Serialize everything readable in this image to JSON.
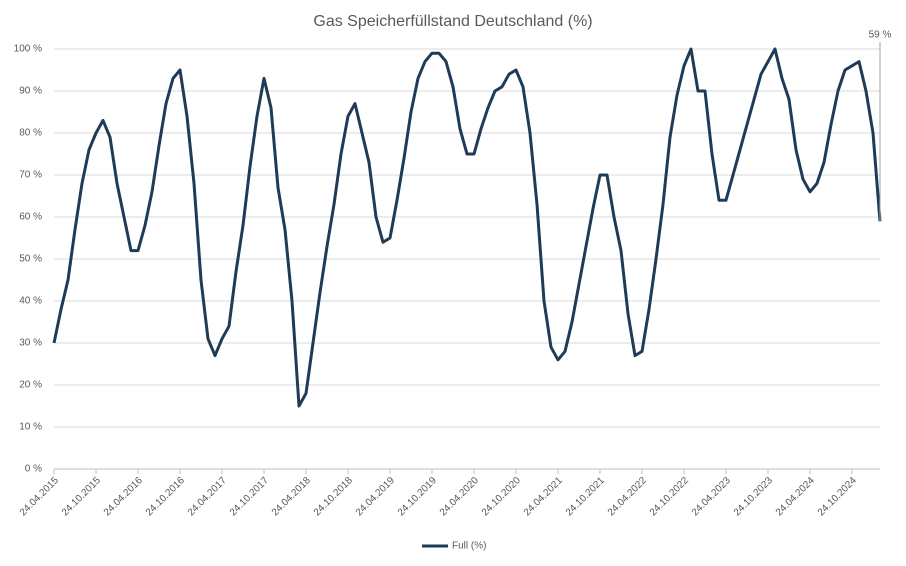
{
  "chart_data": {
    "type": "line",
    "title": "Gas Speicherfüllstand Deutschland (%)",
    "annotation": "59 %",
    "categories": [
      "24.04.2015",
      null,
      null,
      null,
      null,
      null,
      "24.10.2015",
      null,
      null,
      null,
      null,
      null,
      "24.04.2016",
      null,
      null,
      null,
      null,
      null,
      "24.10.2016",
      null,
      null,
      null,
      null,
      null,
      "24.04.2017",
      null,
      null,
      null,
      null,
      null,
      "24.10.2017",
      null,
      null,
      null,
      null,
      null,
      "24.04.2018",
      null,
      null,
      null,
      null,
      null,
      "24.10.2018",
      null,
      null,
      null,
      null,
      null,
      "24.04.2019",
      null,
      null,
      null,
      null,
      null,
      "24.10.2019",
      null,
      null,
      null,
      null,
      null,
      "24.04.2020",
      null,
      null,
      null,
      null,
      null,
      "24.10.2020",
      null,
      null,
      null,
      null,
      null,
      "24.04.2021",
      null,
      null,
      null,
      null,
      null,
      "24.10.2021",
      null,
      null,
      null,
      null,
      null,
      "24.04.2022",
      null,
      null,
      null,
      null,
      null,
      "24.10.2022",
      null,
      null,
      null,
      null,
      null,
      "24.04.2023",
      null,
      null,
      null,
      null,
      null,
      "24.10.2023",
      null,
      null,
      null,
      null,
      null,
      "24.04.2024",
      null,
      null,
      null,
      null,
      null,
      "24.10.2024",
      null,
      null,
      null,
      null
    ],
    "series": [
      {
        "name": "Full (%)",
        "color": "#1f3b57",
        "values": [
          30,
          38,
          45,
          57,
          68,
          76,
          80,
          83,
          79,
          68,
          60,
          52,
          52,
          58,
          66,
          77,
          87,
          93,
          95,
          84,
          68,
          45,
          31,
          27,
          31,
          34,
          47,
          58,
          72,
          84,
          93,
          86,
          67,
          57,
          40,
          15,
          18,
          30,
          42,
          53,
          63,
          75,
          84,
          87,
          80,
          73,
          60,
          54,
          55,
          64,
          74,
          85,
          93,
          97,
          99,
          99,
          97,
          91,
          81,
          75,
          75,
          81,
          86,
          90,
          91,
          94,
          95,
          91,
          80,
          63,
          40,
          29,
          26,
          28,
          35,
          44,
          53,
          62,
          70,
          70,
          60,
          52,
          37,
          27,
          28,
          38,
          50,
          63,
          79,
          89,
          96,
          100,
          90,
          90,
          75,
          64,
          64,
          70,
          76,
          82,
          88,
          94,
          97,
          100,
          93,
          88,
          76,
          69,
          66,
          68,
          73,
          82,
          90,
          95,
          96,
          97,
          90,
          80,
          59
        ]
      }
    ],
    "ylim": [
      0,
      100
    ],
    "yticks": [
      {
        "value": 0,
        "label": "0 %"
      },
      {
        "value": 10,
        "label": "10 %"
      },
      {
        "value": 20,
        "label": "20 %"
      },
      {
        "value": 30,
        "label": "30 %"
      },
      {
        "value": 40,
        "label": "40 %"
      },
      {
        "value": 50,
        "label": "50 %"
      },
      {
        "value": 60,
        "label": "60 %"
      },
      {
        "value": 70,
        "label": "70 %"
      },
      {
        "value": 80,
        "label": "80 %"
      },
      {
        "value": 90,
        "label": "90 %"
      },
      {
        "value": 100,
        "label": "100 %"
      }
    ],
    "grid": true,
    "legend": "bottom"
  }
}
